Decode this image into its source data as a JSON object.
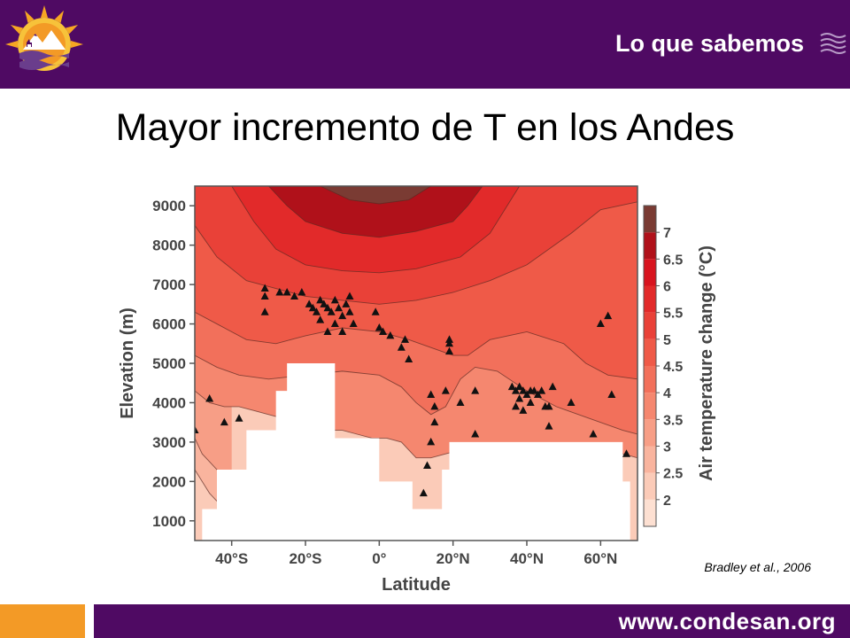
{
  "header": {
    "section_label": "Lo que sabemos"
  },
  "slide": {
    "title": "Mayor incremento de T en los Andes"
  },
  "citation": "Bradley et al., 2006",
  "footer": {
    "url": "www.condesan.org"
  },
  "colors": {
    "header_bg": "#4f0a63",
    "footer_accent": "#f39a26"
  },
  "icons": [
    "logo-sun-mountains-icon",
    "waves-icon"
  ],
  "chart_data": {
    "type": "heatmap",
    "title": "",
    "xlabel": "Latitude",
    "ylabel": "Elevation (m)",
    "colorbar_label": "Air temperature change (°C)",
    "xlim": [
      -50,
      70
    ],
    "ylim": [
      500,
      9500
    ],
    "x_ticks": [
      {
        "value": -40,
        "label": "40°S"
      },
      {
        "value": -20,
        "label": "20°S"
      },
      {
        "value": 0,
        "label": "0°"
      },
      {
        "value": 20,
        "label": "20°N"
      },
      {
        "value": 40,
        "label": "40°N"
      },
      {
        "value": 60,
        "label": "60°N"
      }
    ],
    "y_ticks": [
      1000,
      2000,
      3000,
      4000,
      5000,
      6000,
      7000,
      8000,
      9000
    ],
    "colorbar_levels": [
      "2",
      "2.5",
      "3",
      "3.5",
      "4",
      "4.5",
      "5",
      "5.5",
      "6",
      "6.5",
      "7"
    ],
    "colorbar_colors": [
      "#fde0d2",
      "#fbcbb8",
      "#f9b49e",
      "#f79e86",
      "#f5876f",
      "#f2705b",
      "#ef5a48",
      "#e94138",
      "#e22a2a",
      "#d8141f",
      "#b0111a",
      "#7a3b33"
    ],
    "bands": [
      {
        "level": 7.25,
        "x": [
          -16,
          -8,
          0,
          8,
          14
        ],
        "y": [
          9500,
          9150,
          9050,
          9150,
          9500
        ]
      },
      {
        "level": 6.5,
        "x": [
          -30,
          -25,
          -20,
          -10,
          0,
          10,
          20,
          24,
          28
        ],
        "y": [
          9500,
          9000,
          8600,
          8300,
          8200,
          8350,
          8600,
          9000,
          9500
        ]
      },
      {
        "level": 5.75,
        "x": [
          -40,
          -34,
          -28,
          -20,
          -10,
          0,
          10,
          22,
          30,
          38
        ],
        "y": [
          9500,
          8600,
          7900,
          7500,
          7350,
          7300,
          7400,
          7700,
          8300,
          9500
        ]
      },
      {
        "level": 5.25,
        "x": [
          -50,
          -44,
          -36,
          -28,
          -20,
          -10,
          0,
          10,
          20,
          30,
          40,
          52,
          60,
          70
        ],
        "y": [
          8500,
          7700,
          7100,
          6900,
          6700,
          6600,
          6500,
          6600,
          6800,
          7100,
          7500,
          8300,
          8900,
          9100
        ]
      },
      {
        "level": 4.75,
        "x": [
          -50,
          -44,
          -36,
          -28,
          -20,
          -10,
          0,
          8,
          14,
          20,
          24,
          30,
          40,
          50,
          56,
          62,
          70
        ],
        "y": [
          6300,
          6000,
          5600,
          5500,
          5700,
          5900,
          5800,
          5600,
          5400,
          5200,
          5200,
          5600,
          5800,
          5500,
          5000,
          4700,
          4600
        ]
      },
      {
        "level": 4.25,
        "x": [
          -50,
          -44,
          -38,
          -30,
          -20,
          -10,
          0,
          6,
          10,
          14,
          18,
          22,
          26,
          32,
          40,
          48,
          54,
          60,
          66,
          70
        ],
        "y": [
          5200,
          4900,
          4700,
          4600,
          4700,
          4800,
          4700,
          4400,
          4000,
          3700,
          3900,
          4600,
          4900,
          4800,
          4300,
          3900,
          3700,
          3500,
          3300,
          3200
        ]
      },
      {
        "level": 3.75,
        "x": [
          -50,
          -46,
          -42,
          -38,
          -34,
          -30,
          -26,
          -22,
          -18,
          -14,
          -10,
          -6,
          -2,
          2,
          6,
          8,
          10,
          14,
          18,
          22,
          30,
          40,
          50,
          60,
          66,
          70
        ],
        "y": [
          4300,
          4000,
          3900,
          3900,
          3800,
          3700,
          3600,
          3500,
          3400,
          3300,
          3300,
          3200,
          3100,
          3100,
          3000,
          2800,
          2600,
          2600,
          2700,
          2800,
          2800,
          2800,
          2800,
          2800,
          2700,
          2600
        ]
      },
      {
        "level": 3.25,
        "x": [
          -50,
          -48,
          -46,
          -44,
          -42,
          -40
        ],
        "y": [
          3100,
          2700,
          2500,
          2300,
          2200,
          2100
        ]
      },
      {
        "level": 2.75,
        "x": [
          -50,
          -48,
          -46,
          -44
        ],
        "y": [
          2300,
          2000,
          1700,
          1500
        ]
      }
    ],
    "terrain_mask": {
      "x": [
        -48,
        -44,
        -44,
        -36,
        -36,
        -28,
        -28,
        -25,
        -25,
        -12,
        -12,
        0,
        0,
        9,
        9,
        17,
        17,
        19,
        19,
        66,
        66,
        68,
        68
      ],
      "y": [
        1300,
        1300,
        2300,
        2300,
        3300,
        3300,
        4300,
        4300,
        5000,
        5000,
        3100,
        3100,
        2000,
        2000,
        1300,
        1300,
        2300,
        2300,
        3000,
        3000,
        2000,
        2000,
        1300
      ]
    },
    "stations": [
      [
        -50,
        3300
      ],
      [
        -46,
        4100
      ],
      [
        -42,
        3500
      ],
      [
        -38,
        3600
      ],
      [
        -31,
        6900
      ],
      [
        -31,
        6700
      ],
      [
        -31,
        6300
      ],
      [
        -27,
        6800
      ],
      [
        -25,
        6800
      ],
      [
        -23,
        6700
      ],
      [
        -21,
        6800
      ],
      [
        -19,
        6500
      ],
      [
        -18,
        6400
      ],
      [
        -17,
        6300
      ],
      [
        -16,
        6600
      ],
      [
        -15,
        6500
      ],
      [
        -14,
        6400
      ],
      [
        -13,
        6300
      ],
      [
        -12,
        6600
      ],
      [
        -11,
        6400
      ],
      [
        -10,
        6200
      ],
      [
        -16,
        6100
      ],
      [
        -14,
        5800
      ],
      [
        -12,
        6000
      ],
      [
        -10,
        5800
      ],
      [
        -9,
        6500
      ],
      [
        -8,
        6300
      ],
      [
        -8,
        6700
      ],
      [
        -7,
        6000
      ],
      [
        -1,
        6300
      ],
      [
        0,
        5900
      ],
      [
        1,
        5800
      ],
      [
        3,
        5700
      ],
      [
        6,
        5400
      ],
      [
        7,
        5600
      ],
      [
        8,
        5100
      ],
      [
        14,
        4200
      ],
      [
        15,
        3900
      ],
      [
        15,
        3500
      ],
      [
        14,
        3000
      ],
      [
        13,
        2400
      ],
      [
        12,
        1700
      ],
      [
        19,
        5500
      ],
      [
        19,
        5300
      ],
      [
        19,
        5600
      ],
      [
        18,
        4300
      ],
      [
        22,
        4000
      ],
      [
        26,
        4300
      ],
      [
        26,
        3200
      ],
      [
        36,
        4400
      ],
      [
        37,
        4300
      ],
      [
        38,
        4400
      ],
      [
        39,
        4300
      ],
      [
        40,
        4200
      ],
      [
        41,
        4300
      ],
      [
        42,
        4300
      ],
      [
        43,
        4200
      ],
      [
        44,
        4300
      ],
      [
        45,
        3900
      ],
      [
        46,
        3900
      ],
      [
        46,
        3400
      ],
      [
        47,
        4400
      ],
      [
        37,
        3900
      ],
      [
        38,
        4100
      ],
      [
        39,
        3800
      ],
      [
        41,
        4000
      ],
      [
        52,
        4000
      ],
      [
        58,
        3200
      ],
      [
        60,
        6000
      ],
      [
        62,
        6200
      ],
      [
        63,
        4200
      ],
      [
        67,
        2700
      ]
    ]
  }
}
